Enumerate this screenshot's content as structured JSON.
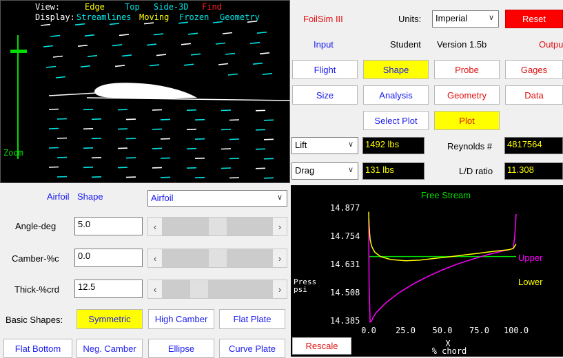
{
  "view_panel": {
    "view_label": "View:",
    "view_edge": "Edge",
    "view_top": "Top",
    "view_side3d": "Side-3D",
    "view_find": "Find",
    "display_label": "Display:",
    "display_streamlines": "Streamlines",
    "display_moving": "Moving",
    "display_frozen": "Frozen",
    "display_geometry": "Geometry",
    "zoom_label": "Zoom"
  },
  "header": {
    "app_title": "FoilSim III",
    "units_label": "Units:",
    "units_value": "Imperial",
    "reset_label": "Reset",
    "input_label": "Input",
    "student_label": "Student",
    "version_label": "Version 1.5b",
    "output_label": "Outpu"
  },
  "tabs": {
    "flight": "Flight",
    "shape": "Shape",
    "probe": "Probe",
    "gages": "Gages",
    "size": "Size",
    "analysis": "Analysis",
    "geometry": "Geometry",
    "data": "Data",
    "select_plot": "Select Plot",
    "plot": "Plot"
  },
  "results": {
    "lift_select": "Lift",
    "lift_value": "1492 lbs",
    "reynolds_label": "Reynolds #",
    "reynolds_value": "4817564",
    "drag_select": "Drag",
    "drag_value": "131 lbs",
    "ld_label": "L/D ratio",
    "ld_value": "11.308"
  },
  "shape_panel": {
    "airfoil_label": "Airfoil",
    "shape_label": "Shape",
    "shape_select": "Airfoil",
    "angle_label": "Angle-deg",
    "angle_value": "5.0",
    "angle_level": 0.5,
    "camber_label": "Camber-%c",
    "camber_value": "0.0",
    "camber_level": 0.5,
    "thick_label": "Thick-%crd",
    "thick_value": "12.5",
    "thick_level": 0.3,
    "basic_shapes_label": "Basic Shapes:",
    "symmetric": "Symmetric",
    "high_camber": "High Camber",
    "flat_plate": "Flat Plate",
    "flat_bottom": "Flat Bottom",
    "neg_camber": "Neg. Camber",
    "ellipse": "Ellipse",
    "curve_plate": "Curve Plate"
  },
  "plot_panel": {
    "rescale_label": "Rescale"
  },
  "chart_data": {
    "type": "line",
    "title": "Free Stream",
    "ylabel_line1": "Press",
    "ylabel_line2": "psi",
    "xlabel_line1": "X",
    "xlabel_line2": "% chord",
    "y_ticks": [
      "14.877",
      "14.754",
      "14.631",
      "14.508",
      "14.385"
    ],
    "x_ticks": [
      "0.0",
      "25.0",
      "50.0",
      "75.0",
      "100.0"
    ],
    "xlim": [
      0,
      100
    ],
    "ylim": [
      14.385,
      14.877
    ],
    "free_stream": 14.665,
    "series": [
      {
        "name": "Upper",
        "color": "#ff00ff",
        "x": [
          0,
          0.3,
          1,
          2,
          3,
          5,
          8,
          12,
          20,
          30,
          40,
          50,
          60,
          70,
          80,
          90,
          95,
          98,
          99,
          100
        ],
        "y": [
          14.83,
          14.55,
          14.38,
          14.385,
          14.4,
          14.42,
          14.44,
          14.465,
          14.505,
          14.545,
          14.578,
          14.607,
          14.632,
          14.653,
          14.672,
          14.688,
          14.695,
          14.7,
          14.75,
          14.85
        ]
      },
      {
        "name": "Lower",
        "color": "#ffff00",
        "x": [
          0,
          0.3,
          1,
          2,
          4,
          8,
          15,
          25,
          35,
          45,
          55,
          65,
          75,
          85,
          95,
          98,
          100
        ],
        "y": [
          14.86,
          14.8,
          14.74,
          14.71,
          14.685,
          14.665,
          14.652,
          14.647,
          14.65,
          14.657,
          14.664,
          14.672,
          14.68,
          14.688,
          14.695,
          14.7,
          14.72
        ]
      }
    ]
  }
}
